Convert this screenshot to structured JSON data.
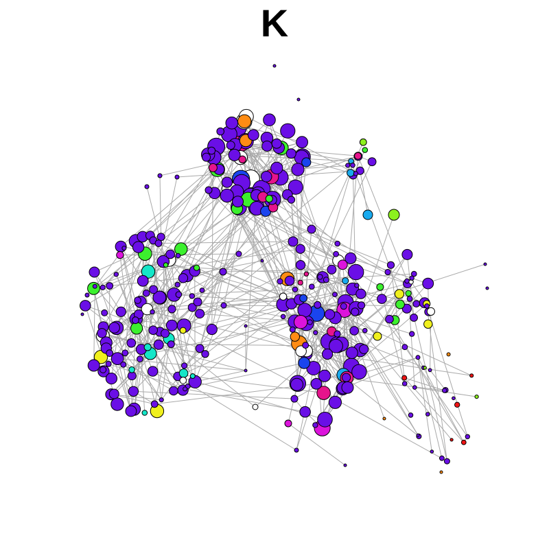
{
  "figure": {
    "panel_label": "K"
  },
  "colors": {
    "edge": "#a9a9a9",
    "node_outline": "#000000",
    "node_palette": {
      "violet": "#6a0fe6",
      "blue": "#1a44ee",
      "sky": "#19aaee",
      "cyan": "#14e6c8",
      "green": "#3cf02e",
      "lime": "#8cf01e",
      "yellow": "#f0f01e",
      "orange": "#ff8c14",
      "red": "#f01414",
      "magenta": "#dc14dc",
      "pink": "#e6148c",
      "white": "#ffffff"
    }
  },
  "clusters": [
    {
      "id": "top",
      "color_mix": [
        "violet",
        "blue",
        "white",
        "green",
        "pink",
        "orange"
      ]
    },
    {
      "id": "top-right",
      "color_mix": [
        "violet",
        "orange",
        "pink",
        "green",
        "sky",
        "lime"
      ]
    },
    {
      "id": "left",
      "color_mix": [
        "violet",
        "cyan",
        "yellow",
        "green",
        "magenta",
        "white"
      ]
    },
    {
      "id": "center",
      "color_mix": [
        "violet",
        "blue",
        "sky",
        "white",
        "pink",
        "orange",
        "magenta"
      ]
    },
    {
      "id": "right",
      "color_mix": [
        "violet",
        "yellow",
        "lime",
        "white",
        "green"
      ]
    },
    {
      "id": "bottom-right",
      "color_mix": [
        "violet",
        "lime",
        "orange",
        "red",
        "white"
      ]
    }
  ]
}
